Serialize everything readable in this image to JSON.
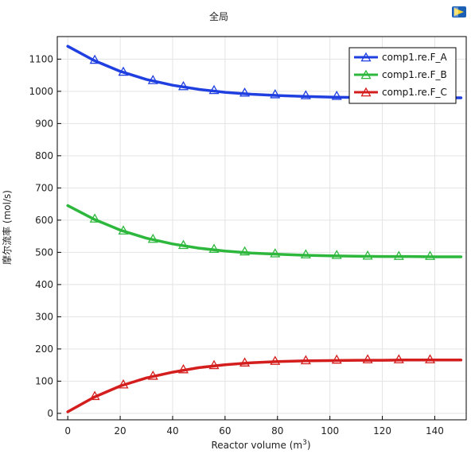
{
  "chart_data": {
    "type": "line",
    "title": "全局",
    "xlabel": "Reactor volume (m",
    "xlabel_sup": "3",
    "xlabel_suffix": ")",
    "ylabel": "摩尔流率 (mol/s)",
    "xlim": [
      -4,
      152
    ],
    "ylim": [
      -20,
      1170
    ],
    "x_ticks": [
      0,
      20,
      40,
      60,
      80,
      100,
      120,
      140
    ],
    "y_ticks": [
      0,
      100,
      200,
      300,
      400,
      500,
      600,
      700,
      800,
      900,
      1000,
      1100
    ],
    "grid": true,
    "legend_position": "top-right",
    "series": [
      {
        "name": "comp1.re.F_A",
        "color": "#1f3fe0",
        "x": [
          0,
          10,
          20,
          30,
          40,
          50,
          60,
          70,
          80,
          90,
          100,
          110,
          120,
          130,
          140,
          150
        ],
        "values": [
          1140,
          1096,
          1062,
          1037,
          1019,
          1006,
          997,
          991,
          987,
          984,
          982,
          981,
          980,
          980,
          980,
          980
        ],
        "marker_x": [
          10.3,
          21.2,
          32.5,
          44.1,
          55.8,
          67.5,
          79.1,
          90.8,
          102.6,
          114.4,
          126.3,
          138.2
        ],
        "marker_y": [
          1096,
          1059,
          1033,
          1014,
          1002,
          994,
          989,
          986,
          984,
          982,
          981,
          980
        ]
      },
      {
        "name": "comp1.re.F_B",
        "color": "#2db83d",
        "x": [
          0,
          10,
          20,
          30,
          40,
          50,
          60,
          70,
          80,
          90,
          100,
          110,
          120,
          130,
          140,
          150
        ],
        "values": [
          645,
          603,
          569,
          544,
          526,
          513,
          504,
          498,
          494,
          491,
          489,
          488,
          487,
          487,
          486,
          486
        ],
        "marker_x": [
          10.3,
          21.2,
          32.5,
          44.1,
          55.8,
          67.5,
          79.1,
          90.8,
          102.6,
          114.4,
          126.3,
          138.2
        ],
        "marker_y": [
          603,
          566,
          540,
          521,
          509,
          501,
          495,
          492,
          490,
          488,
          487,
          487
        ]
      },
      {
        "name": "comp1.re.F_C",
        "color": "#d41e1e",
        "x": [
          0,
          10,
          20,
          30,
          40,
          50,
          60,
          70,
          80,
          90,
          100,
          110,
          120,
          130,
          140,
          150
        ],
        "values": [
          5,
          50,
          85,
          110,
          128,
          142,
          151,
          157,
          161,
          163,
          164,
          165,
          165,
          166,
          166,
          166
        ],
        "marker_x": [
          10.3,
          21.2,
          32.5,
          44.1,
          55.8,
          67.5,
          79.1,
          90.8,
          102.6,
          114.4,
          126.3,
          138.2
        ],
        "marker_y": [
          52,
          88,
          115,
          135,
          148,
          156,
          161,
          163,
          165,
          166,
          166,
          166
        ]
      }
    ]
  }
}
